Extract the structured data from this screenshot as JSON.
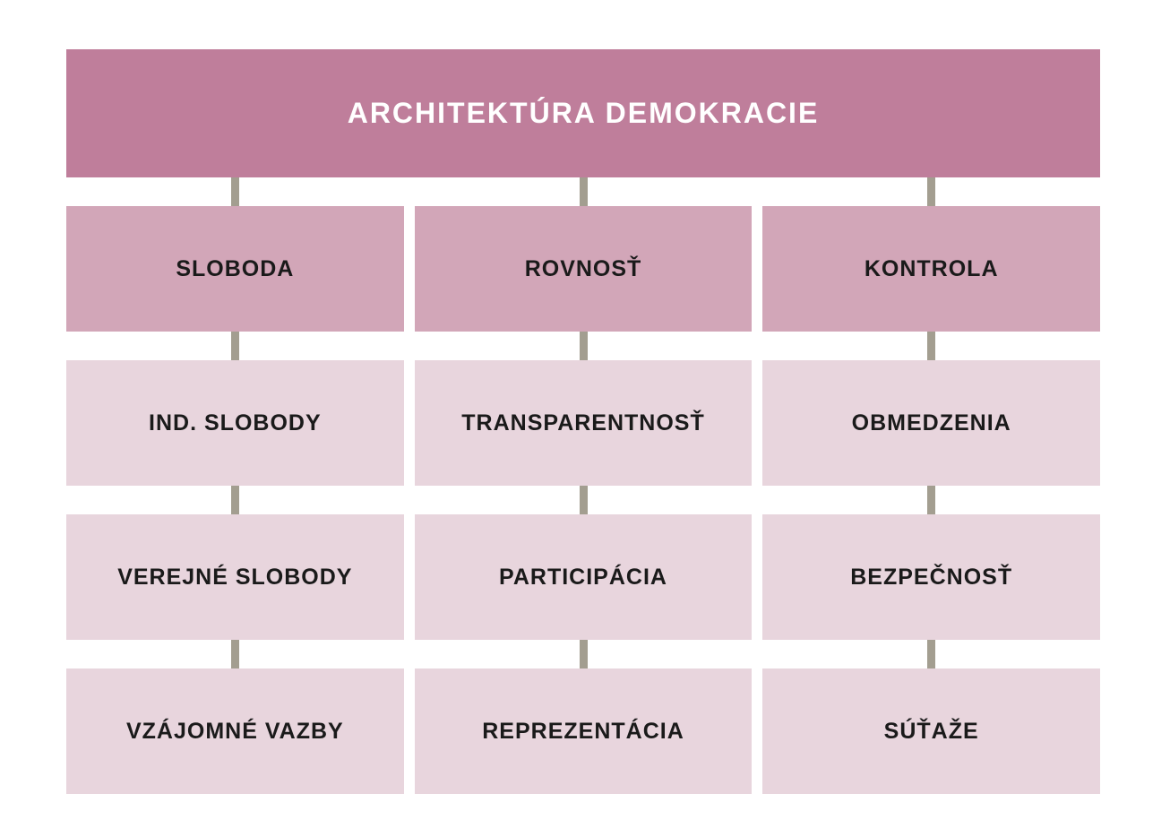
{
  "diagram": {
    "title": "ARCHITEKTÚRA DEMOKRACIE",
    "columns": [
      {
        "pillar": "SLOBODA",
        "children": [
          "IND. SLOBODY",
          "VEREJNÉ SLOBODY",
          "VZÁJOMNÉ VAZBY"
        ]
      },
      {
        "pillar": "ROVNOSŤ",
        "children": [
          "TRANSPARENTNOSŤ",
          "PARTICIPÁCIA",
          "REPREZENTÁCIA"
        ]
      },
      {
        "pillar": "KONTROLA",
        "children": [
          "OBMEDZENIA",
          "BEZPEČNOSŤ",
          "SÚŤAŽE"
        ]
      }
    ],
    "colors": {
      "header_bg": "#bf7e9b",
      "pillar_bg": "#d2a6b8",
      "child_bg": "#e8d5dd",
      "connector": "#a39e90",
      "title_text": "#ffffff",
      "label_text": "#1a1a1a",
      "page_bg": "#ffffff"
    }
  }
}
